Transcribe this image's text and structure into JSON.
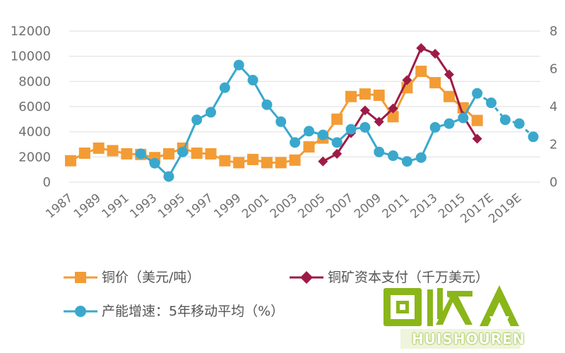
{
  "chart_data": {
    "type": "line",
    "x_categories": [
      "1987",
      "1988",
      "1989",
      "1990",
      "1991",
      "1992",
      "1993",
      "1994",
      "1995",
      "1996",
      "1997",
      "1998",
      "1999",
      "2000",
      "2001",
      "2002",
      "2003",
      "2004",
      "2005",
      "2006",
      "2007",
      "2008",
      "2009",
      "2010",
      "2011",
      "2012",
      "2013",
      "2014",
      "2015",
      "2016",
      "2017E",
      "2018E",
      "2019E",
      "2020E"
    ],
    "x_tick_labels": [
      "1987",
      "1989",
      "1991",
      "1993",
      "1995",
      "1997",
      "1999",
      "2001",
      "2003",
      "2005",
      "2007",
      "2009",
      "2011",
      "2013",
      "2015",
      "2017E",
      "2019E"
    ],
    "y_left": {
      "ticks": [
        "0",
        "2000",
        "4000",
        "6000",
        "8000",
        "10000",
        "12000"
      ],
      "range": [
        0,
        12000
      ]
    },
    "y_right": {
      "ticks": [
        "0",
        "2",
        "4",
        "6",
        "8"
      ],
      "range": [
        0,
        8
      ]
    },
    "grid": "horizontal",
    "legend_position": "bottom",
    "series": [
      {
        "name": "铜价（美元/吨）",
        "axis": "left",
        "color": "#f39c35",
        "marker": "square",
        "start_index": 0,
        "values": [
          1700,
          2300,
          2700,
          2500,
          2250,
          2200,
          1950,
          2250,
          2700,
          2300,
          2250,
          1700,
          1550,
          1800,
          1550,
          1550,
          1750,
          2800,
          3500,
          5000,
          6800,
          7000,
          6900,
          5200,
          7500,
          8800,
          7900,
          6800,
          5900,
          4900
        ]
      },
      {
        "name": "铜矿资本支付（千万美元）",
        "axis": "right",
        "color": "#9e1b46",
        "marker": "diamond",
        "start_index": 18,
        "values": [
          1.1,
          1.5,
          2.6,
          3.8,
          3.2,
          3.9,
          5.4,
          7.1,
          6.8,
          5.7,
          3.5,
          2.3
        ]
      },
      {
        "name": "产能增速：5年移动平均（%）",
        "axis": "right",
        "color": "#3aa8cc",
        "marker": "circle",
        "start_index": 5,
        "projection_from_index": 29,
        "values": [
          1.5,
          1.0,
          0.3,
          1.6,
          3.3,
          3.7,
          5.0,
          6.2,
          5.4,
          4.1,
          3.2,
          2.1,
          2.7,
          2.5,
          2.1,
          2.8,
          2.9,
          1.6,
          1.4,
          1.1,
          1.3,
          2.9,
          3.1,
          3.4,
          4.7,
          4.2,
          3.3,
          3.1,
          2.4
        ]
      }
    ]
  },
  "legend": {
    "copper_price": "铜价（美元/吨）",
    "copper_capex": "铜矿资本支付（千万美元）",
    "capacity_growth": "产能增速：5年移动平均（%）"
  },
  "watermark": {
    "main_text": "回收",
    "sub_text": "HUISHOUREN",
    "color": "#8ab61a"
  }
}
